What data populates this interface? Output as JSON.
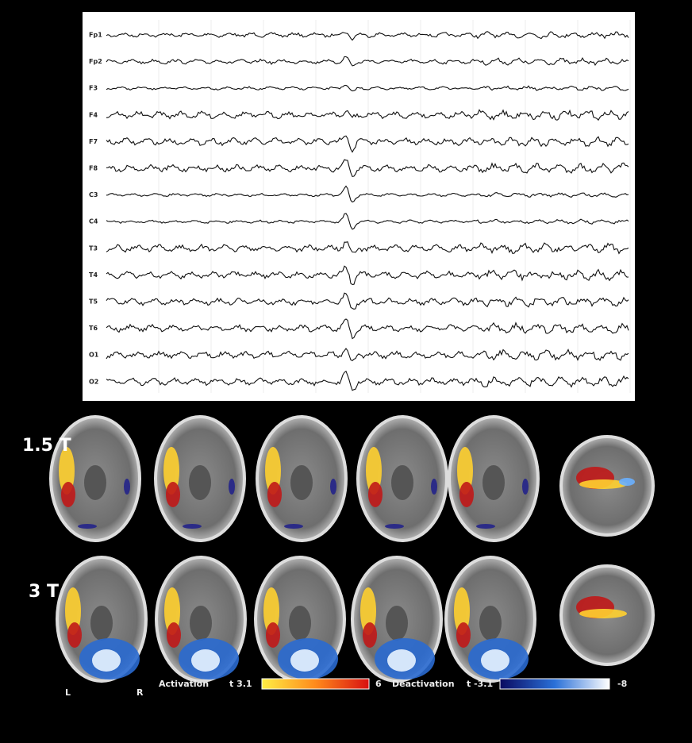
{
  "eeg": {
    "channels": [
      "Fp1",
      "Fp2",
      "F3",
      "F4",
      "F7",
      "F8",
      "C3",
      "C4",
      "T3",
      "T4",
      "T5",
      "T6",
      "O1",
      "O2"
    ]
  },
  "rows": [
    {
      "label": "1.5 T"
    },
    {
      "label": "3 T"
    }
  ],
  "orientation": {
    "left": "L",
    "right": "R"
  },
  "legend": {
    "activation": {
      "label": "Activation",
      "min": "t 3.1",
      "max": "6"
    },
    "deactivation": {
      "label": "Deactivation",
      "min": "t -3.1",
      "max": "-8"
    }
  }
}
